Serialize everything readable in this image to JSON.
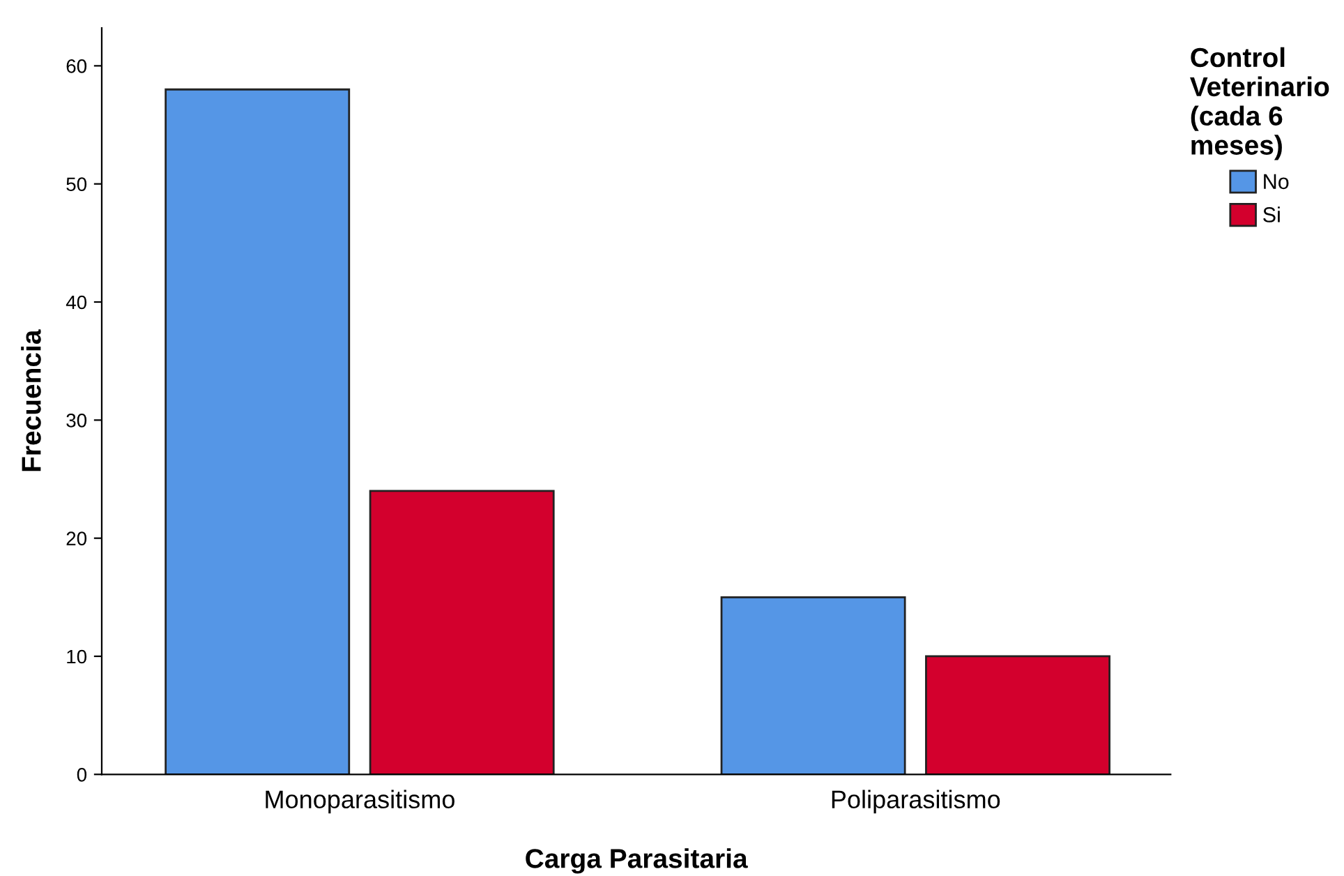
{
  "chart_data": {
    "type": "bar",
    "xlabel": "Carga Parasitaria",
    "ylabel": "Frecuencia",
    "legend_title": "Control\nVeterinario\n(cada 6\nmeses)",
    "categories": [
      "Monoparasitismo",
      "Poliparasitismo"
    ],
    "series": [
      {
        "name": "No",
        "color": "#5596e6",
        "values": [
          58,
          15
        ]
      },
      {
        "name": "Si",
        "color": "#d3002d",
        "values": [
          24,
          10
        ]
      }
    ],
    "ylim": [
      0,
      63.2
    ],
    "yticks": [
      0,
      10,
      20,
      30,
      40,
      50,
      60
    ],
    "grid": false,
    "legend": "top right"
  }
}
